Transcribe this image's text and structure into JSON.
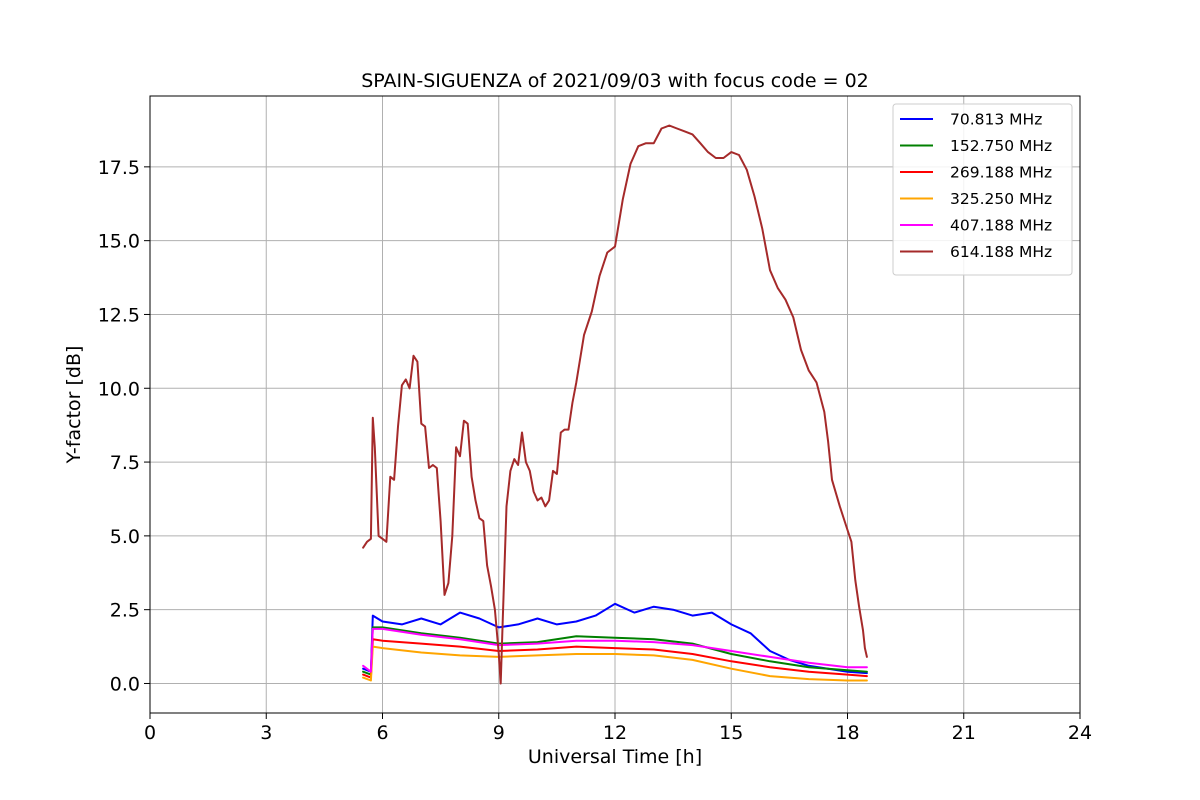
{
  "chart_data": {
    "type": "line",
    "title": "SPAIN-SIGUENZA of 2021/09/03 with focus code = 02",
    "xlabel": "Universal Time [h]",
    "ylabel": "Y-factor [dB]",
    "xlim": [
      0,
      24
    ],
    "ylim": [
      -1.0,
      19.9
    ],
    "x_ticks": [
      0,
      3,
      6,
      9,
      12,
      15,
      18,
      21,
      24
    ],
    "x_tick_labels": [
      "0",
      "3",
      "6",
      "9",
      "12",
      "15",
      "18",
      "21",
      "24"
    ],
    "y_ticks": [
      0.0,
      2.5,
      5.0,
      7.5,
      10.0,
      12.5,
      15.0,
      17.5
    ],
    "y_tick_labels": [
      "0.0",
      "2.5",
      "5.0",
      "7.5",
      "10.0",
      "12.5",
      "15.0",
      "17.5"
    ],
    "grid": true,
    "legend_position": "top-right",
    "series": [
      {
        "name": " 70.813 MHz",
        "color": "#0000ff",
        "x": [
          5.5,
          5.7,
          5.75,
          6.0,
          6.5,
          7.0,
          7.5,
          8.0,
          8.5,
          9.0,
          9.5,
          10.0,
          10.5,
          11.0,
          11.5,
          12.0,
          12.5,
          13.0,
          13.5,
          14.0,
          14.5,
          15.0,
          15.5,
          16.0,
          16.5,
          17.0,
          17.5,
          18.0,
          18.5
        ],
        "y": [
          0.5,
          0.4,
          2.3,
          2.1,
          2.0,
          2.2,
          2.0,
          2.4,
          2.2,
          1.9,
          2.0,
          2.2,
          2.0,
          2.1,
          2.3,
          2.7,
          2.4,
          2.6,
          2.5,
          2.3,
          2.4,
          2.0,
          1.7,
          1.1,
          0.8,
          0.6,
          0.5,
          0.4,
          0.35
        ]
      },
      {
        "name": "152.750 MHz",
        "color": "#008000",
        "x": [
          5.5,
          5.7,
          5.75,
          6.0,
          7.0,
          8.0,
          9.0,
          10.0,
          11.0,
          12.0,
          13.0,
          14.0,
          15.0,
          16.0,
          17.0,
          18.0,
          18.5
        ],
        "y": [
          0.4,
          0.3,
          1.9,
          1.9,
          1.7,
          1.55,
          1.35,
          1.4,
          1.6,
          1.55,
          1.5,
          1.35,
          1.0,
          0.75,
          0.55,
          0.45,
          0.4
        ]
      },
      {
        "name": "269.188 MHz",
        "color": "#ff0000",
        "x": [
          5.5,
          5.7,
          5.75,
          6.0,
          7.0,
          8.0,
          9.0,
          10.0,
          11.0,
          12.0,
          13.0,
          14.0,
          15.0,
          16.0,
          17.0,
          18.0,
          18.5
        ],
        "y": [
          0.3,
          0.2,
          1.5,
          1.45,
          1.35,
          1.25,
          1.1,
          1.15,
          1.25,
          1.2,
          1.15,
          1.0,
          0.75,
          0.55,
          0.4,
          0.3,
          0.25
        ]
      },
      {
        "name": "325.250 MHz",
        "color": "#ffa500",
        "x": [
          5.5,
          5.7,
          5.75,
          6.0,
          7.0,
          8.0,
          9.0,
          10.0,
          11.0,
          12.0,
          13.0,
          14.0,
          15.0,
          16.0,
          17.0,
          18.0,
          18.5
        ],
        "y": [
          0.2,
          0.1,
          1.25,
          1.2,
          1.05,
          0.95,
          0.9,
          0.95,
          1.0,
          1.0,
          0.95,
          0.8,
          0.5,
          0.25,
          0.15,
          0.1,
          0.1
        ]
      },
      {
        "name": "407.188 MHz",
        "color": "#ff00ff",
        "x": [
          5.5,
          5.7,
          5.75,
          6.0,
          7.0,
          8.0,
          9.0,
          10.0,
          11.0,
          12.0,
          13.0,
          14.0,
          15.0,
          16.0,
          17.0,
          18.0,
          18.5
        ],
        "y": [
          0.6,
          0.4,
          1.85,
          1.85,
          1.65,
          1.5,
          1.3,
          1.35,
          1.45,
          1.45,
          1.4,
          1.3,
          1.1,
          0.9,
          0.7,
          0.55,
          0.55
        ]
      },
      {
        "name": "614.188 MHz",
        "color": "#a52a2a",
        "x": [
          5.5,
          5.6,
          5.7,
          5.75,
          5.8,
          5.9,
          6.0,
          6.1,
          6.2,
          6.3,
          6.4,
          6.5,
          6.6,
          6.7,
          6.8,
          6.9,
          7.0,
          7.1,
          7.2,
          7.3,
          7.4,
          7.5,
          7.6,
          7.7,
          7.8,
          7.9,
          8.0,
          8.1,
          8.2,
          8.3,
          8.4,
          8.5,
          8.6,
          8.7,
          8.8,
          8.9,
          9.0,
          9.05,
          9.1,
          9.2,
          9.3,
          9.4,
          9.5,
          9.6,
          9.7,
          9.8,
          9.9,
          10.0,
          10.1,
          10.2,
          10.3,
          10.4,
          10.5,
          10.6,
          10.7,
          10.8,
          10.9,
          11.0,
          11.2,
          11.4,
          11.6,
          11.8,
          12.0,
          12.2,
          12.4,
          12.6,
          12.8,
          13.0,
          13.2,
          13.4,
          13.6,
          13.8,
          14.0,
          14.2,
          14.4,
          14.6,
          14.8,
          15.0,
          15.2,
          15.4,
          15.6,
          15.8,
          16.0,
          16.2,
          16.4,
          16.6,
          16.8,
          17.0,
          17.2,
          17.4,
          17.5,
          17.6,
          17.8,
          18.0,
          18.1,
          18.2,
          18.3,
          18.4,
          18.45,
          18.5
        ],
        "y": [
          4.6,
          4.8,
          4.9,
          9.0,
          8.0,
          5.0,
          4.9,
          4.8,
          7.0,
          6.9,
          8.7,
          10.1,
          10.3,
          10.0,
          11.1,
          10.9,
          8.8,
          8.7,
          7.3,
          7.4,
          7.3,
          5.5,
          3.0,
          3.4,
          5.0,
          8.0,
          7.7,
          8.9,
          8.8,
          7.0,
          6.2,
          5.6,
          5.5,
          4.0,
          3.3,
          2.5,
          1.0,
          0.0,
          2.0,
          6.0,
          7.2,
          7.6,
          7.4,
          8.5,
          7.5,
          7.2,
          6.5,
          6.2,
          6.3,
          6.0,
          6.2,
          7.2,
          7.1,
          8.5,
          8.6,
          8.6,
          9.5,
          10.2,
          11.8,
          12.6,
          13.8,
          14.6,
          14.8,
          16.4,
          17.6,
          18.2,
          18.3,
          18.3,
          18.8,
          18.9,
          18.8,
          18.7,
          18.6,
          18.3,
          18.0,
          17.8,
          17.8,
          18.0,
          17.9,
          17.4,
          16.5,
          15.4,
          14.0,
          13.4,
          13.0,
          12.4,
          11.3,
          10.6,
          10.2,
          9.2,
          8.2,
          6.9,
          6.0,
          5.2,
          4.8,
          3.5,
          2.6,
          1.8,
          1.2,
          0.9
        ]
      }
    ]
  }
}
